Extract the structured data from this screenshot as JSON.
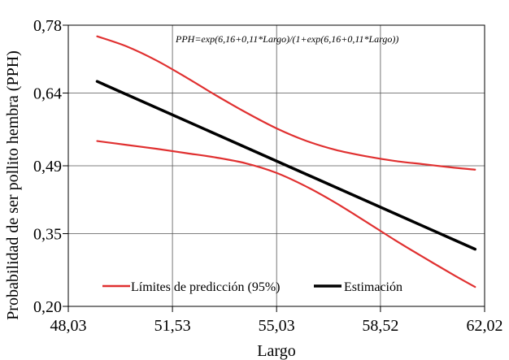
{
  "chart_data": {
    "type": "line",
    "xlabel": "Largo",
    "ylabel": "Probabilidad de ser pollito hembra (PPH)",
    "xlim": [
      48.03,
      62.02
    ],
    "ylim": [
      0.2,
      0.78
    ],
    "x_ticks": [
      "48,03",
      "51,53",
      "55,03",
      "58,52",
      "62,02"
    ],
    "x_tick_values": [
      48.03,
      51.53,
      55.03,
      58.52,
      62.02
    ],
    "y_ticks": [
      "0,78",
      "0,64",
      "0,49",
      "0,35",
      "0,20"
    ],
    "y_tick_values": [
      0.78,
      0.64,
      0.49,
      0.35,
      0.2
    ],
    "grid": true,
    "annotation": "PPH=exp(6,16+0,11*Largo)/(1+exp(6,16+0,11*Largo))",
    "legend_placement": "bottom-left",
    "series": [
      {
        "name": "Límites de predicción (95%)",
        "color": "#e03030",
        "x": [
          49.0,
          50.0,
          51.0,
          52.0,
          53.0,
          54.0,
          55.0,
          56.0,
          57.0,
          58.0,
          59.0,
          60.0,
          61.0,
          61.7
        ],
        "y": [
          0.757,
          0.736,
          0.707,
          0.672,
          0.635,
          0.6,
          0.568,
          0.542,
          0.523,
          0.51,
          0.5,
          0.493,
          0.486,
          0.482
        ],
        "role": "upper"
      },
      {
        "name": "Límites de predicción (95%)",
        "color": "#e03030",
        "x": [
          49.0,
          50.0,
          51.0,
          52.0,
          53.0,
          54.0,
          55.0,
          56.0,
          57.0,
          58.0,
          59.0,
          60.0,
          61.0,
          61.7
        ],
        "y": [
          0.541,
          0.533,
          0.525,
          0.516,
          0.507,
          0.495,
          0.476,
          0.448,
          0.414,
          0.376,
          0.337,
          0.3,
          0.264,
          0.24
        ],
        "role": "lower"
      },
      {
        "name": "Estimación",
        "color": "#000000",
        "x": [
          49.0,
          61.7
        ],
        "y": [
          0.664,
          0.318
        ],
        "role": "estimate"
      }
    ]
  },
  "legend": {
    "bounds_label": "Límites de predicción (95%)",
    "estimate_label": "Estimación"
  }
}
